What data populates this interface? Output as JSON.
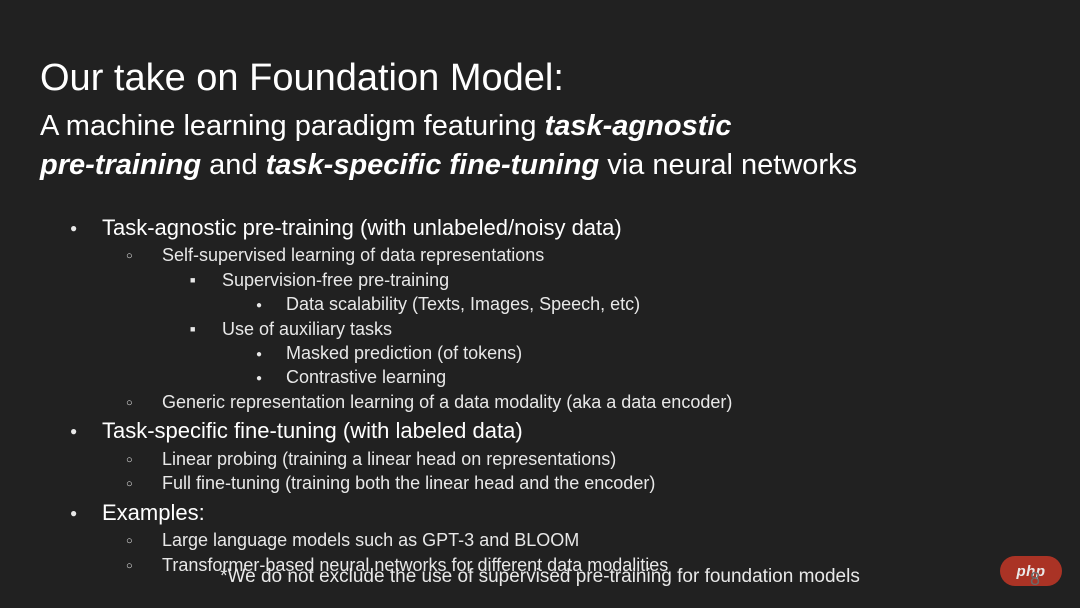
{
  "colors": {
    "background": "#212121",
    "text": "#ffffff",
    "text_dim": "#e8e8e8",
    "page_num": "#6a6a6a",
    "badge_bg": "#b93526"
  },
  "title": "Our take on Foundation Model:",
  "subtitle": {
    "pre1": "A machine learning paradigm featuring ",
    "emph1": "task-agnostic",
    "emph2": "pre-training",
    "mid": " and ",
    "emph3": "task-specific fine-tuning",
    "post": " via neural networks"
  },
  "bullets": {
    "a": "Task-agnostic pre-training (with unlabeled/noisy data)",
    "a1": "Self-supervised learning of data representations",
    "a1a": "Supervision-free pre-training",
    "a1a1": "Data scalability (Texts, Images, Speech, etc)",
    "a1b": "Use of auxiliary tasks",
    "a1b1": "Masked prediction (of tokens)",
    "a1b2": "Contrastive learning",
    "a2": "Generic representation learning of a data modality (aka a data encoder)",
    "b": "Task-specific fine-tuning (with labeled data)",
    "b1": "Linear probing (training a linear head on representations)",
    "b2": "Full fine-tuning (training both the linear head and the encoder)",
    "c": "Examples:",
    "c1": "Large language models such as GPT-3 and BLOOM",
    "c2": "Transformer-based neural networks for different data modalities"
  },
  "footnote": "*We do not exclude the use of supervised pre-training for foundation models",
  "page_number": "8",
  "badge": "php"
}
